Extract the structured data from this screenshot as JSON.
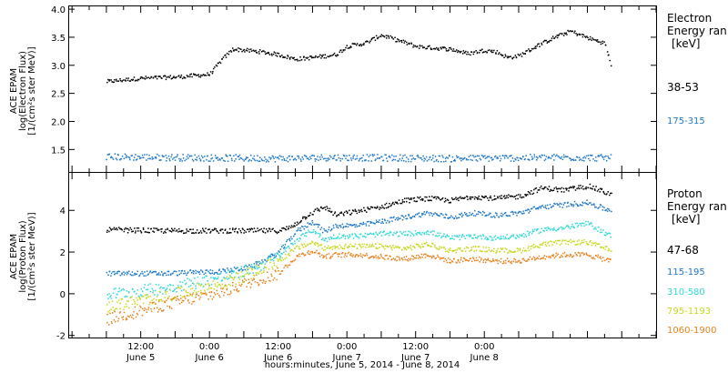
{
  "chart_data": [
    {
      "type": "scatter",
      "panel": "electron",
      "ylabel_lines": [
        "ACE EPAM",
        "log(Electron Flux)",
        "[1/(cm²s ster MeV)]"
      ],
      "legend_title": [
        "Electron",
        "Energy ran",
        "[keV]"
      ],
      "ylim": [
        1.1,
        4.05
      ],
      "yticks": [
        "1.5",
        "2.0",
        "2.5",
        "3.0",
        "3.5",
        "4.0"
      ],
      "ytick_values": [
        1.5,
        2.0,
        2.5,
        3.0,
        3.5,
        4.0
      ],
      "series": [
        {
          "name": "38-53",
          "color": "#000000",
          "x": [
            0,
            6,
            12,
            18,
            20,
            22,
            27,
            30,
            33,
            36,
            40,
            42,
            45,
            48,
            51,
            54,
            57,
            60,
            63,
            66,
            68,
            70,
            72,
            75,
            78,
            81,
            84,
            87,
            88
          ],
          "y": [
            2.72,
            2.78,
            2.8,
            2.85,
            3.1,
            3.3,
            3.25,
            3.2,
            3.12,
            3.15,
            3.2,
            3.35,
            3.4,
            3.55,
            3.45,
            3.35,
            3.32,
            3.3,
            3.22,
            3.28,
            3.25,
            3.15,
            3.18,
            3.35,
            3.5,
            3.62,
            3.5,
            3.4,
            3.02
          ]
        },
        {
          "name": "175-315",
          "color": "#1f78c8",
          "x": [
            0,
            10,
            20,
            30,
            40,
            50,
            60,
            70,
            80,
            88
          ],
          "y": [
            1.38,
            1.37,
            1.36,
            1.35,
            1.37,
            1.36,
            1.35,
            1.36,
            1.37,
            1.36
          ]
        }
      ]
    },
    {
      "type": "scatter",
      "panel": "proton",
      "ylabel_lines": [
        "ACE EPAM",
        "log(Proton Flux)",
        "[1/(cm²s ster MeV)]"
      ],
      "legend_title": [
        "Proton",
        "Energy ran",
        "[keV]"
      ],
      "ylim": [
        -2.1,
        5.8
      ],
      "yticks": [
        "-2",
        "0",
        "2",
        "4"
      ],
      "ytick_values": [
        -2,
        0,
        2,
        4
      ],
      "series": [
        {
          "name": "47-68",
          "color": "#000000",
          "x": [
            0,
            10,
            20,
            30,
            32,
            35,
            38,
            40,
            44,
            48,
            52,
            56,
            60,
            64,
            68,
            72,
            76,
            80,
            84,
            88
          ],
          "y": [
            3.1,
            3.05,
            3.05,
            3.05,
            3.2,
            3.8,
            4.2,
            3.8,
            4.0,
            4.2,
            4.5,
            4.6,
            4.5,
            4.7,
            4.6,
            4.7,
            5.1,
            5.0,
            5.2,
            4.8
          ]
        },
        {
          "name": "115-195",
          "color": "#1f78c8",
          "x": [
            0,
            10,
            20,
            25,
            30,
            33,
            36,
            38,
            40,
            44,
            48,
            52,
            56,
            60,
            64,
            68,
            72,
            76,
            80,
            84,
            88
          ],
          "y": [
            1.0,
            1.0,
            1.1,
            1.3,
            2.0,
            3.0,
            3.5,
            3.0,
            3.3,
            3.3,
            3.5,
            3.7,
            3.9,
            3.7,
            3.9,
            3.8,
            3.9,
            4.2,
            4.3,
            4.4,
            4.0
          ]
        },
        {
          "name": "310-580",
          "color": "#30d8d8",
          "x": [
            0,
            10,
            20,
            25,
            30,
            33,
            36,
            38,
            40,
            44,
            48,
            52,
            56,
            60,
            64,
            68,
            72,
            76,
            80,
            84,
            88
          ],
          "y": [
            0.0,
            0.3,
            0.8,
            1.2,
            1.8,
            2.6,
            3.1,
            2.6,
            2.8,
            2.8,
            2.9,
            2.9,
            3.0,
            2.7,
            2.8,
            2.7,
            2.8,
            3.1,
            3.2,
            3.4,
            2.8
          ]
        },
        {
          "name": "795-1193",
          "color": "#c8d820",
          "x": [
            0,
            10,
            20,
            25,
            30,
            33,
            36,
            38,
            40,
            44,
            48,
            52,
            56,
            60,
            64,
            68,
            72,
            76,
            80,
            84,
            88
          ],
          "y": [
            -0.6,
            -0.1,
            0.5,
            1.0,
            1.6,
            2.2,
            2.5,
            2.2,
            2.3,
            2.3,
            2.3,
            2.2,
            2.4,
            2.1,
            2.2,
            2.1,
            2.1,
            2.4,
            2.5,
            2.5,
            2.1
          ]
        },
        {
          "name": "1060-1900",
          "color": "#e8821e",
          "x": [
            0,
            10,
            20,
            25,
            30,
            33,
            36,
            38,
            40,
            44,
            48,
            52,
            56,
            60,
            64,
            68,
            72,
            76,
            80,
            84,
            88
          ],
          "y": [
            -1.2,
            -0.5,
            0.1,
            0.6,
            1.0,
            1.8,
            2.1,
            1.8,
            1.9,
            1.9,
            1.8,
            1.7,
            1.9,
            1.6,
            1.7,
            1.6,
            1.6,
            1.8,
            1.9,
            1.9,
            1.6
          ]
        }
      ]
    }
  ],
  "xaxis": {
    "xlim": [
      -6.5,
      96
    ],
    "ticks": [
      {
        "hour": 6,
        "time": "12:00",
        "day": "June 5"
      },
      {
        "hour": 18,
        "time": "0:00",
        "day": "June 6"
      },
      {
        "hour": 30,
        "time": "12:00",
        "day": "June 6"
      },
      {
        "hour": 42,
        "time": "0:00",
        "day": "June 7"
      },
      {
        "hour": 54,
        "time": "12:00",
        "day": "June 7"
      },
      {
        "hour": 66,
        "time": "0:00",
        "day": "June 8"
      }
    ],
    "xlabel": "hours:minutes, June  5, 2014 - June  8, 2014"
  }
}
